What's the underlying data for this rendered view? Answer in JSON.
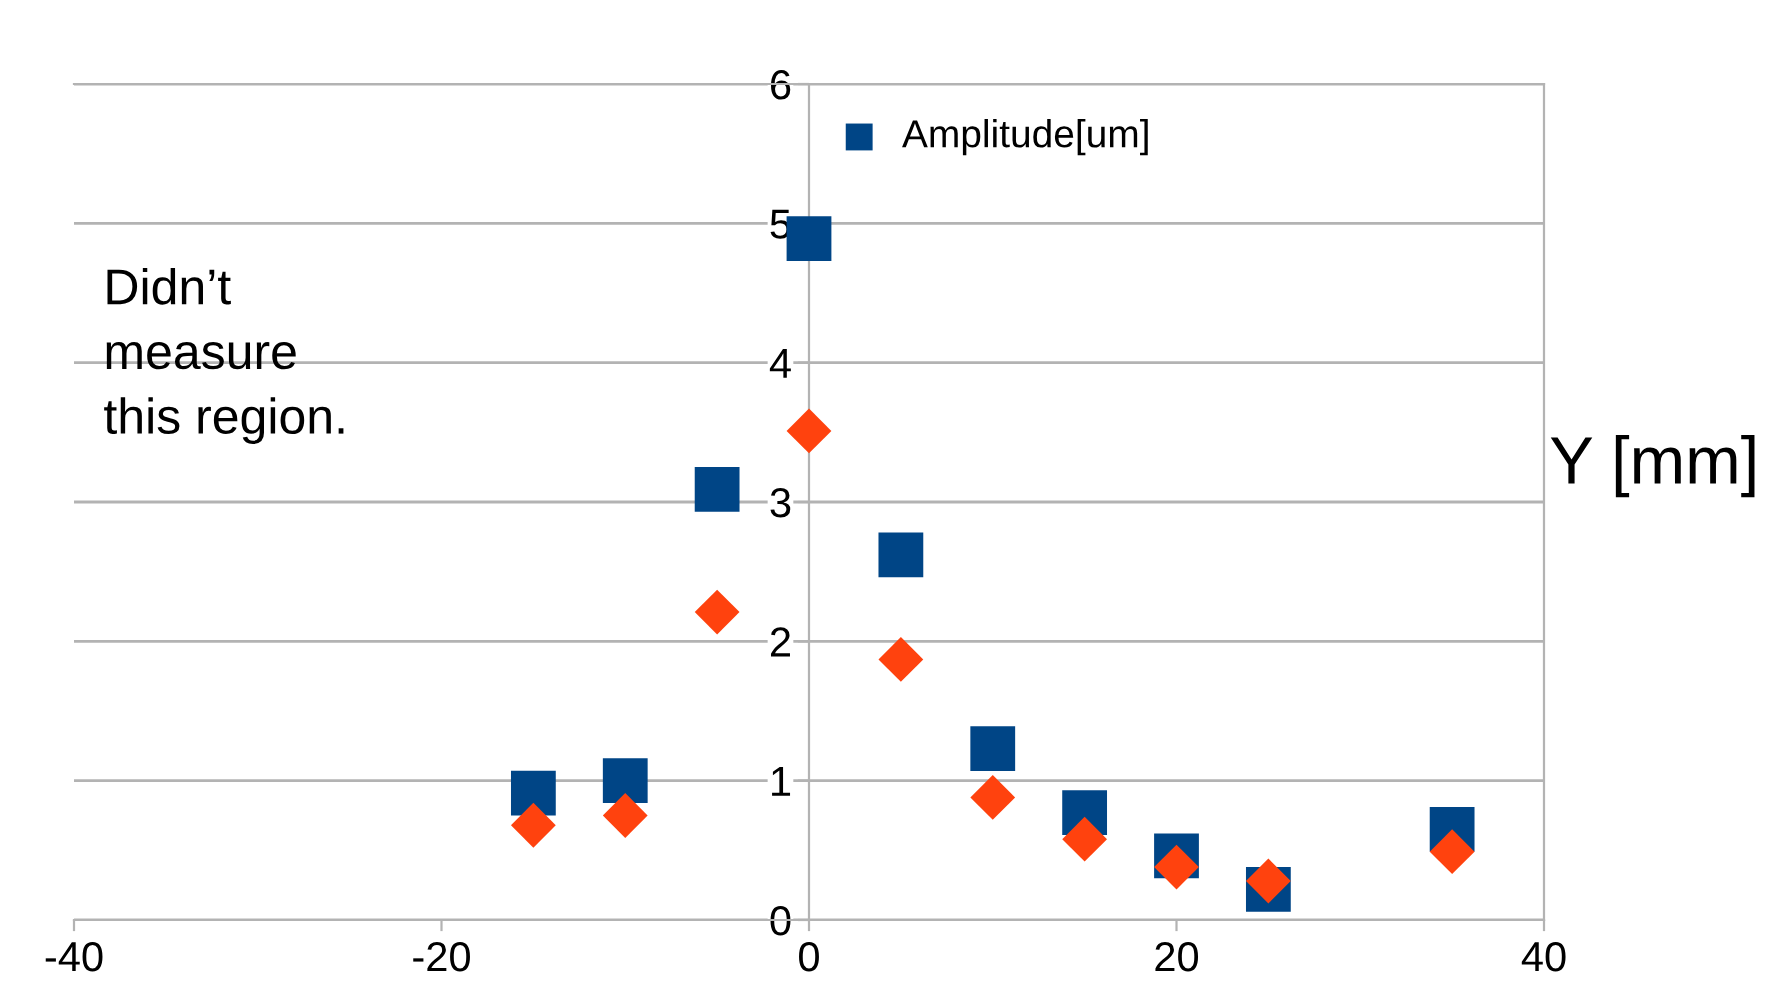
{
  "chart_data": {
    "type": "scatter",
    "xlabel": "Y [mm]",
    "x": [
      -15,
      -10,
      -5,
      0,
      5,
      10,
      15,
      20,
      25,
      35
    ],
    "series": [
      {
        "name": "Amplitude[um]",
        "color": "#004586",
        "marker": "square",
        "values": [
          0.91,
          1.0,
          3.09,
          4.89,
          2.62,
          1.23,
          0.77,
          0.46,
          0.22,
          0.65
        ]
      },
      {
        "color": "#ff420e",
        "marker": "diamond",
        "values": [
          0.68,
          0.75,
          2.21,
          3.51,
          1.87,
          0.88,
          0.58,
          0.38,
          0.28,
          0.49
        ]
      }
    ],
    "xlim": [
      -40,
      40
    ],
    "xticks": [
      -40,
      -20,
      0,
      20,
      40
    ],
    "ylim": [
      0,
      6
    ],
    "yticks": [
      0,
      1,
      2,
      3,
      4,
      5,
      6
    ],
    "grid": "y",
    "legend": "top",
    "annotations": [
      "Didn’t\nmeasure\nthis region."
    ]
  }
}
